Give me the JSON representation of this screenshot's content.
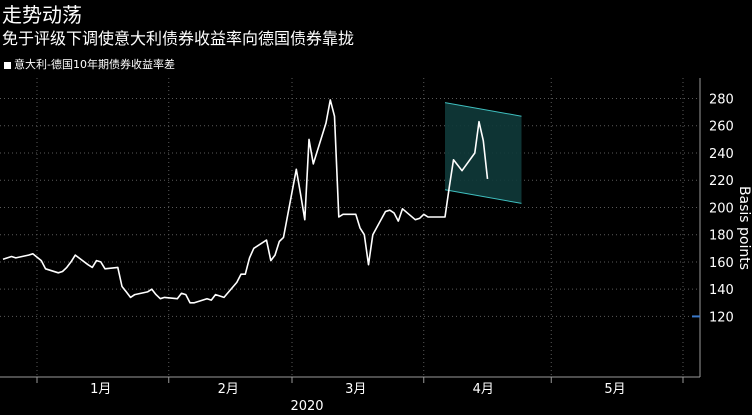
{
  "header": {
    "title": "走势动荡",
    "subtitle": "免于评级下调使意大利债券收益率向德国债券靠拢"
  },
  "chart_data": {
    "type": "line",
    "title": "走势动荡",
    "subtitle": "免于评级下调使意大利债券收益率向德国债券靠拢",
    "xlabel": "2020",
    "ylabel": "Basis points",
    "ylim": [
      120,
      290
    ],
    "yticks": [
      120,
      140,
      160,
      180,
      200,
      220,
      240,
      260,
      280
    ],
    "x_tick_labels": [
      "1月",
      "2月",
      "3月",
      "4月",
      "5月"
    ],
    "grid": true,
    "legend_position": "top-left",
    "series": [
      {
        "name": "意大利-德国10年期债券收益率差",
        "color": "#ffffff",
        "x": [
          "2019-12-24",
          "2019-12-26",
          "2019-12-27",
          "2019-12-30",
          "2019-12-31",
          "2020-01-02",
          "2020-01-03",
          "2020-01-06",
          "2020-01-07",
          "2020-01-08",
          "2020-01-09",
          "2020-01-10",
          "2020-01-13",
          "2020-01-14",
          "2020-01-15",
          "2020-01-16",
          "2020-01-17",
          "2020-01-20",
          "2020-01-21",
          "2020-01-22",
          "2020-01-23",
          "2020-01-24",
          "2020-01-27",
          "2020-01-28",
          "2020-01-29",
          "2020-01-30",
          "2020-01-31",
          "2020-02-03",
          "2020-02-04",
          "2020-02-05",
          "2020-02-06",
          "2020-02-07",
          "2020-02-10",
          "2020-02-11",
          "2020-02-12",
          "2020-02-13",
          "2020-02-14",
          "2020-02-17",
          "2020-02-18",
          "2020-02-19",
          "2020-02-20",
          "2020-02-21",
          "2020-02-24",
          "2020-02-25",
          "2020-02-26",
          "2020-02-27",
          "2020-02-28",
          "2020-03-02",
          "2020-03-03",
          "2020-03-04",
          "2020-03-05",
          "2020-03-06",
          "2020-03-09",
          "2020-03-10",
          "2020-03-11",
          "2020-03-12",
          "2020-03-13",
          "2020-03-16",
          "2020-03-17",
          "2020-03-18",
          "2020-03-19",
          "2020-03-20",
          "2020-03-23",
          "2020-03-24",
          "2020-03-25",
          "2020-03-26",
          "2020-03-27",
          "2020-03-30",
          "2020-03-31",
          "2020-04-01",
          "2020-04-02",
          "2020-04-03",
          "2020-04-06",
          "2020-04-07",
          "2020-04-08",
          "2020-04-09",
          "2020-04-10",
          "2020-04-13",
          "2020-04-14",
          "2020-04-15",
          "2020-04-16"
        ],
        "values": [
          162,
          164,
          163,
          165,
          166,
          161,
          155,
          152,
          153,
          156,
          160,
          165,
          158,
          156,
          161,
          160,
          155,
          156,
          142,
          138,
          134,
          136,
          138,
          140,
          136,
          133,
          134,
          133,
          137,
          136,
          130,
          130,
          133,
          132,
          136,
          135,
          134,
          145,
          151,
          151,
          163,
          170,
          176,
          161,
          165,
          175,
          178,
          228,
          210,
          191,
          250,
          232,
          262,
          279,
          267,
          193,
          195,
          195,
          185,
          180,
          158,
          180,
          197,
          198,
          196,
          190,
          199,
          191,
          192,
          195,
          193,
          193,
          193,
          215,
          235,
          231,
          227,
          240,
          263,
          249,
          221
        ]
      }
    ],
    "annotations": [
      {
        "type": "channel",
        "color": "#3fbfbf",
        "start": "2020-04-06",
        "end": "2020-04-24",
        "upper": [
          277,
          267
        ],
        "lower": [
          213,
          203
        ]
      }
    ]
  }
}
